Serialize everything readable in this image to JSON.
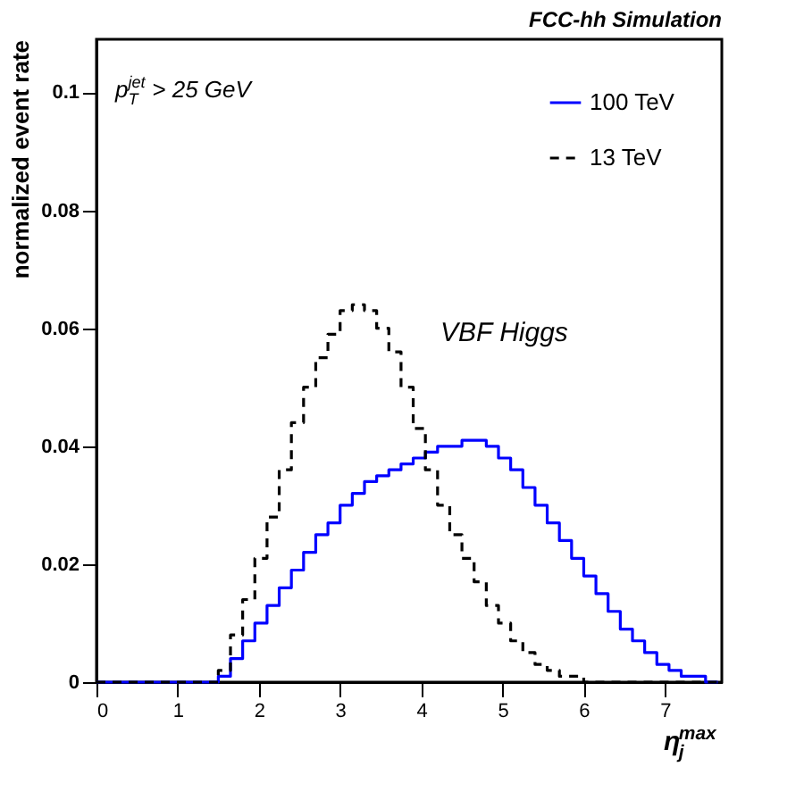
{
  "chart_data": {
    "type": "histogram",
    "title": "FCC-hh Simulation",
    "xlabel": "η$_{j}$$^{max}$",
    "ylabel": "normalized event rate",
    "annotations": [
      "p$_{T}$$^{jet}$ > 25 GeV",
      "VBF Higgs"
    ],
    "bins": [
      0,
      0.15,
      0.3,
      0.45,
      0.6,
      0.75,
      0.9,
      1.05,
      1.2,
      1.35,
      1.5,
      1.65,
      1.8,
      1.95,
      2.1,
      2.25,
      2.4,
      2.55,
      2.7,
      2.85,
      3.0,
      3.15,
      3.3,
      3.45,
      3.6,
      3.75,
      3.9,
      4.05,
      4.2,
      4.35,
      4.5,
      4.65,
      4.8,
      4.95,
      5.1,
      5.25,
      5.4,
      5.55,
      5.7,
      5.85,
      6.0,
      6.15,
      6.3,
      6.45,
      6.6,
      6.75,
      6.9,
      7.05,
      7.2,
      7.35,
      7.5,
      7.65
    ],
    "series": [
      {
        "name": "100 TeV",
        "color": "#0000ff",
        "line_style": "solid",
        "values": [
          0,
          0,
          0,
          0,
          0,
          0,
          0,
          0,
          0,
          0,
          0.001,
          0.004,
          0.007,
          0.01,
          0.013,
          0.016,
          0.019,
          0.022,
          0.025,
          0.027,
          0.03,
          0.032,
          0.034,
          0.035,
          0.036,
          0.037,
          0.038,
          0.039,
          0.04,
          0.04,
          0.041,
          0.041,
          0.04,
          0.038,
          0.036,
          0.033,
          0.03,
          0.027,
          0.024,
          0.021,
          0.018,
          0.015,
          0.012,
          0.009,
          0.007,
          0.005,
          0.003,
          0.002,
          0.001,
          0.001,
          0
        ]
      },
      {
        "name": "13 TeV",
        "color": "#000000",
        "line_style": "dashed",
        "values": [
          0,
          0,
          0,
          0,
          0,
          0,
          0,
          0,
          0,
          0,
          0.002,
          0.008,
          0.014,
          0.021,
          0.028,
          0.036,
          0.044,
          0.05,
          0.055,
          0.059,
          0.063,
          0.064,
          0.063,
          0.06,
          0.056,
          0.05,
          0.043,
          0.036,
          0.03,
          0.025,
          0.021,
          0.017,
          0.013,
          0.01,
          0.007,
          0.005,
          0.003,
          0.002,
          0.001,
          0.001,
          0,
          0,
          0,
          0,
          0,
          0,
          0,
          0,
          0,
          0,
          0
        ]
      }
    ],
    "xlim": [
      0,
      7.7
    ],
    "ylim": [
      0,
      0.109
    ],
    "xticks": [
      0,
      1,
      2,
      3,
      4,
      5,
      6,
      7
    ],
    "yticks": [
      0,
      0.02,
      0.04,
      0.06,
      0.08,
      0.1
    ],
    "grid": false,
    "legend": "top right"
  }
}
